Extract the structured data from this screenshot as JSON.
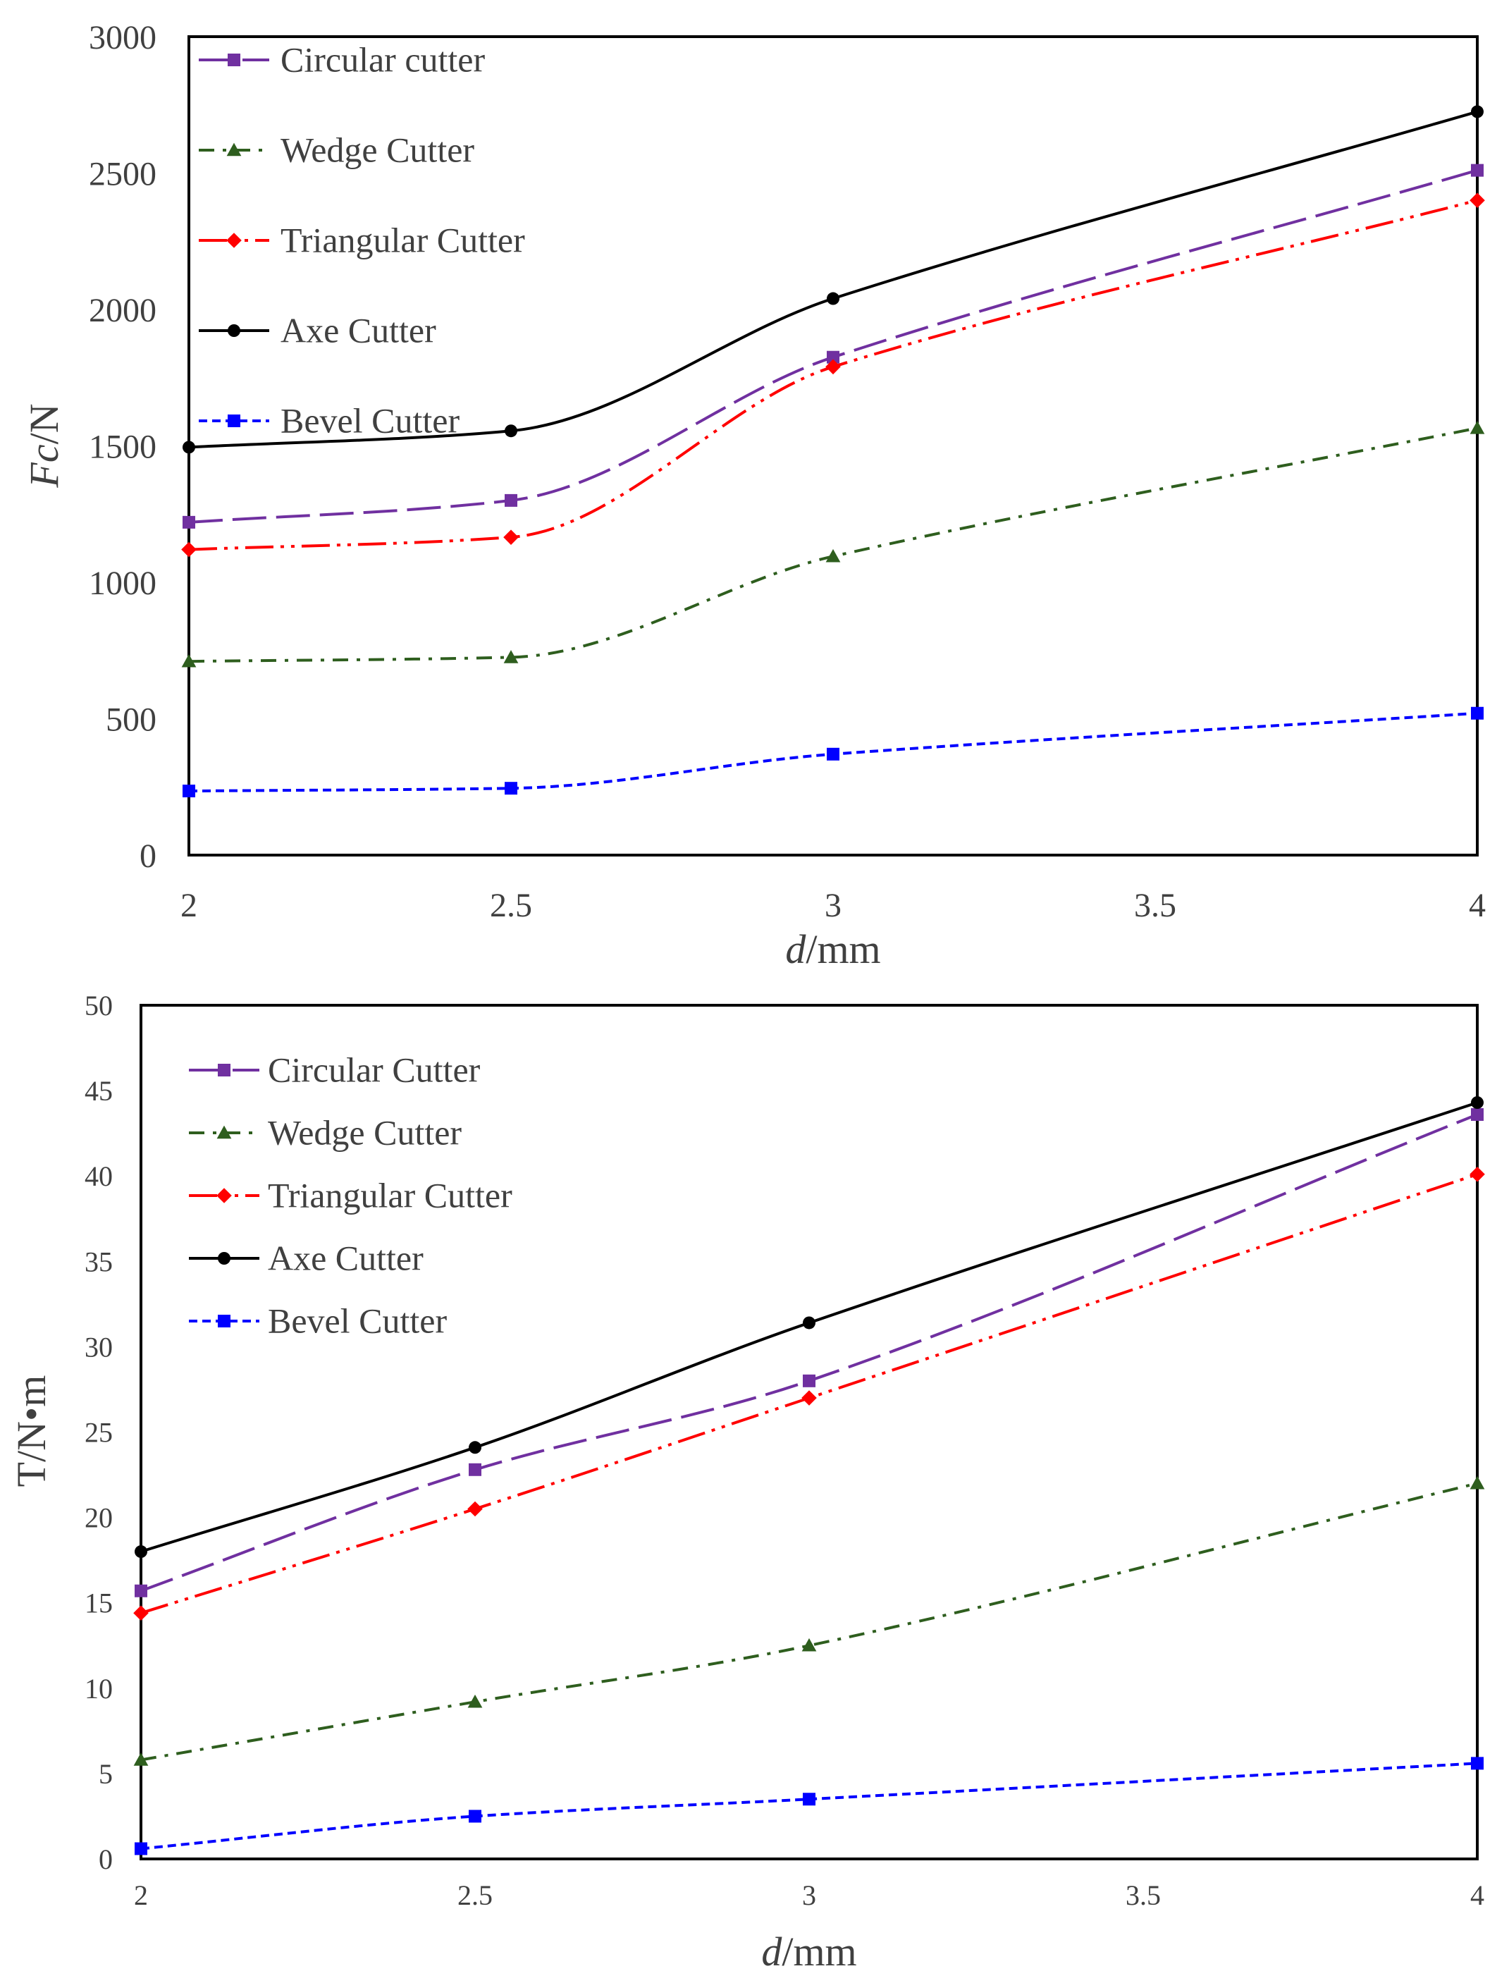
{
  "chart_data": [
    {
      "type": "line",
      "title": "",
      "xlabel": "d/mm",
      "xlabel_italic": "d",
      "xlabel_rest": "/mm",
      "ylabel": "Fc/N",
      "ylabel_italic": "Fc",
      "ylabel_rest": "/N",
      "xlim": [
        2,
        4
      ],
      "ylim": [
        0,
        3000
      ],
      "xticks": [
        2,
        2.5,
        3,
        3.5,
        4
      ],
      "yticks": [
        0,
        500,
        1000,
        1500,
        2000,
        2500,
        3000
      ],
      "grid": false,
      "legend_position": "top-left",
      "x": [
        2,
        2.5,
        3,
        4
      ],
      "series": [
        {
          "name": "Circular cutter",
          "values": [
            1220,
            1300,
            1825,
            2510
          ],
          "color": "#7030A0",
          "marker": "square",
          "dash": "48,14"
        },
        {
          "name": "Wedge Cutter",
          "values": [
            710,
            725,
            1095,
            1565
          ],
          "color": "#2E5E1E",
          "marker": "triangle",
          "dash": "22,12,5,12"
        },
        {
          "name": "Triangular Cutter",
          "values": [
            1120,
            1165,
            1790,
            2400
          ],
          "color": "#FF0000",
          "marker": "diamond",
          "dash": "40,10,5,10,5,10"
        },
        {
          "name": "Axe Cutter",
          "values": [
            1495,
            1555,
            2040,
            2725
          ],
          "color": "#000000",
          "marker": "circle",
          "dash": ""
        },
        {
          "name": "Bevel Cutter",
          "values": [
            235,
            245,
            370,
            520
          ],
          "color": "#0000FF",
          "marker": "square",
          "dash": "12,7"
        }
      ]
    },
    {
      "type": "line",
      "title": "",
      "xlabel": "d/mm",
      "xlabel_italic": "d",
      "xlabel_rest": "/mm",
      "ylabel": "T/N•m",
      "ylabel_italic": "",
      "ylabel_rest": "T/N•m",
      "xlim": [
        2,
        4
      ],
      "ylim": [
        0,
        50
      ],
      "xticks": [
        2,
        2.5,
        3,
        3.5,
        4
      ],
      "yticks": [
        0,
        5,
        10,
        15,
        20,
        25,
        30,
        35,
        40,
        45,
        50
      ],
      "grid": false,
      "legend_position": "top-left",
      "x": [
        2,
        2.5,
        3,
        4
      ],
      "series": [
        {
          "name": "Circular Cutter",
          "values": [
            15.7,
            22.8,
            28.0,
            43.6
          ],
          "color": "#7030A0",
          "marker": "square",
          "dash": "48,14"
        },
        {
          "name": "Wedge Cutter",
          "values": [
            5.8,
            9.2,
            12.5,
            22.0
          ],
          "color": "#2E5E1E",
          "marker": "triangle",
          "dash": "22,12,5,12"
        },
        {
          "name": "Triangular Cutter",
          "values": [
            14.4,
            20.5,
            27.0,
            40.1
          ],
          "color": "#FF0000",
          "marker": "diamond",
          "dash": "40,10,5,10,5,10"
        },
        {
          "name": "Axe Cutter",
          "values": [
            18.0,
            24.1,
            31.4,
            44.3
          ],
          "color": "#000000",
          "marker": "circle",
          "dash": ""
        },
        {
          "name": "Bevel Cutter",
          "values": [
            0.6,
            2.5,
            3.5,
            5.6
          ],
          "color": "#0000FF",
          "marker": "square",
          "dash": "12,7"
        }
      ]
    }
  ]
}
